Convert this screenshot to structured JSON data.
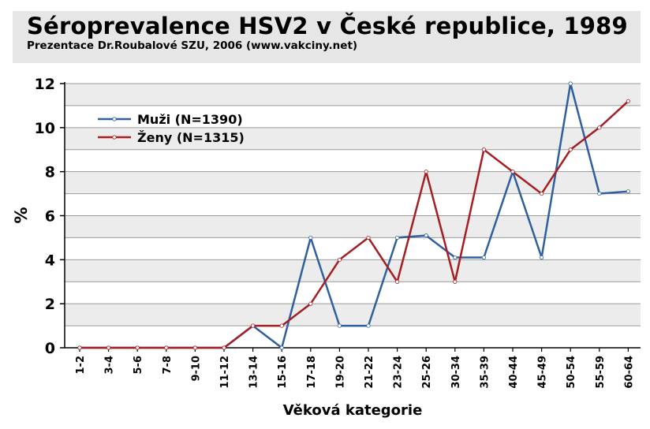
{
  "header": {
    "title": "Séroprevalence HSV2 v České republice, 1989",
    "subtitle": "Prezentace Dr.Roubalové SZU, 2006 (www.vakciny.net)"
  },
  "chart_data": {
    "type": "line",
    "categories": [
      "1-2",
      "3-4",
      "5-6",
      "7-8",
      "9-10",
      "11-12",
      "13-14",
      "15-16",
      "17-18",
      "19-20",
      "21-22",
      "23-24",
      "25-26",
      "30-34",
      "35-39",
      "40-44",
      "45-49",
      "50-54",
      "55-59",
      "60-64"
    ],
    "series": [
      {
        "name": "Muži (N=1390)",
        "color": "#2f5f9e",
        "values": [
          0,
          0,
          0,
          0,
          0,
          0,
          1,
          0,
          5,
          1,
          1,
          5,
          5.1,
          4.1,
          4.1,
          8,
          4.1,
          12,
          7,
          7.1
        ]
      },
      {
        "name": "Ženy (N=1315)",
        "color": "#a51e22",
        "values": [
          0,
          0,
          0,
          0,
          0,
          0,
          1,
          1,
          2,
          4,
          5,
          3,
          8,
          3,
          9,
          8,
          7,
          9,
          10,
          11.2
        ]
      }
    ],
    "xlabel": "Věková kategorie",
    "ylabel": "%",
    "ylim": [
      0,
      12
    ],
    "yticks": [
      0,
      2,
      4,
      6,
      8,
      10,
      12
    ],
    "grid": true,
    "legend_position": "top-left"
  }
}
